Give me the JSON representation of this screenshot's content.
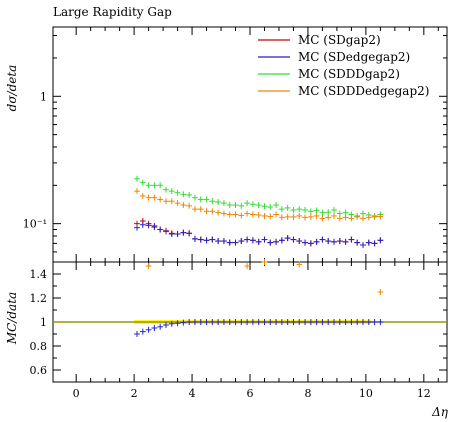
{
  "chart_data": [
    {
      "type": "line",
      "title": "Large Rapidity Gap",
      "ylabel": "dσ/deta",
      "xlabel": "",
      "yscale": "log",
      "xlim": [
        -0.8,
        12.8
      ],
      "ylim": [
        0.05,
        3.5
      ],
      "legend_position": "top-right",
      "y_ticks": [
        {
          "value": 1,
          "label": "1"
        },
        {
          "value": 0.1,
          "label": "10⁻¹"
        }
      ],
      "series": [
        {
          "name": "MC (SDgap2)",
          "color": "#cc0000",
          "x": [
            2.1,
            2.3,
            2.5,
            2.7,
            2.9,
            3.1,
            3.3,
            3.5,
            3.7,
            3.9,
            4.1,
            4.3,
            4.5,
            4.7,
            4.9,
            5.1,
            5.3,
            5.5,
            5.7,
            5.9,
            6.1,
            6.3,
            6.5,
            6.7,
            6.9,
            7.1,
            7.3,
            7.5,
            7.7,
            7.9,
            8.1,
            8.3,
            8.5,
            8.7,
            8.9,
            9.1,
            9.3,
            9.5,
            9.7,
            9.9,
            10.1,
            10.3,
            10.5
          ],
          "values": [
            0.1,
            0.105,
            0.1,
            0.096,
            0.09,
            0.088,
            0.084,
            0.083,
            0.085,
            0.084,
            0.076,
            0.075,
            0.074,
            0.075,
            0.073,
            0.073,
            0.071,
            0.071,
            0.073,
            0.075,
            0.074,
            0.072,
            0.075,
            0.071,
            0.072,
            0.074,
            0.077,
            0.075,
            0.073,
            0.071,
            0.07,
            0.072,
            0.075,
            0.073,
            0.072,
            0.073,
            0.072,
            0.075,
            0.071,
            0.068,
            0.071,
            0.07,
            0.074
          ]
        },
        {
          "name": "MC (SDedgegap2)",
          "color": "#2222cc",
          "x": [
            2.1,
            2.3,
            2.5,
            2.7,
            2.9,
            3.1,
            3.3,
            3.5,
            3.7,
            3.9,
            4.1,
            4.3,
            4.5,
            4.7,
            4.9,
            5.1,
            5.3,
            5.5,
            5.7,
            5.9,
            6.1,
            6.3,
            6.5,
            6.7,
            6.9,
            7.1,
            7.3,
            7.5,
            7.7,
            7.9,
            8.1,
            8.3,
            8.5,
            8.7,
            8.9,
            9.1,
            9.3,
            9.5,
            9.7,
            9.9,
            10.1,
            10.3,
            10.5
          ],
          "values": [
            0.093,
            0.098,
            0.097,
            0.094,
            0.09,
            0.087,
            0.083,
            0.083,
            0.085,
            0.084,
            0.076,
            0.075,
            0.074,
            0.075,
            0.073,
            0.073,
            0.071,
            0.071,
            0.073,
            0.075,
            0.074,
            0.072,
            0.075,
            0.071,
            0.072,
            0.074,
            0.077,
            0.075,
            0.073,
            0.071,
            0.07,
            0.072,
            0.075,
            0.073,
            0.072,
            0.073,
            0.072,
            0.075,
            0.071,
            0.068,
            0.071,
            0.07,
            0.074
          ]
        },
        {
          "name": "MC (SDDDgap2)",
          "color": "#33dd33",
          "x": [
            2.1,
            2.3,
            2.5,
            2.7,
            2.9,
            3.1,
            3.3,
            3.5,
            3.7,
            3.9,
            4.1,
            4.3,
            4.5,
            4.7,
            4.9,
            5.1,
            5.3,
            5.5,
            5.7,
            5.9,
            6.1,
            6.3,
            6.5,
            6.7,
            6.9,
            7.1,
            7.3,
            7.5,
            7.7,
            7.9,
            8.1,
            8.3,
            8.5,
            8.7,
            8.9,
            9.1,
            9.3,
            9.5,
            9.7,
            9.9,
            10.1,
            10.3,
            10.5
          ],
          "values": [
            0.225,
            0.21,
            0.2,
            0.2,
            0.2,
            0.185,
            0.18,
            0.175,
            0.17,
            0.168,
            0.16,
            0.155,
            0.155,
            0.15,
            0.148,
            0.145,
            0.14,
            0.14,
            0.138,
            0.145,
            0.142,
            0.14,
            0.137,
            0.135,
            0.14,
            0.13,
            0.133,
            0.128,
            0.13,
            0.128,
            0.125,
            0.127,
            0.122,
            0.123,
            0.128,
            0.12,
            0.122,
            0.118,
            0.115,
            0.12,
            0.117,
            0.115,
            0.118
          ]
        },
        {
          "name": "MC (SDDDedgegap2)",
          "color": "#ee8800",
          "x": [
            2.1,
            2.3,
            2.5,
            2.7,
            2.9,
            3.1,
            3.3,
            3.5,
            3.7,
            3.9,
            4.1,
            4.3,
            4.5,
            4.7,
            4.9,
            5.1,
            5.3,
            5.5,
            5.7,
            5.9,
            6.1,
            6.3,
            6.5,
            6.7,
            6.9,
            7.1,
            7.3,
            7.5,
            7.7,
            7.9,
            8.1,
            8.3,
            8.5,
            8.7,
            8.9,
            9.1,
            9.3,
            9.5,
            9.7,
            9.9,
            10.1,
            10.3,
            10.5
          ],
          "values": [
            0.18,
            0.165,
            0.16,
            0.16,
            0.155,
            0.15,
            0.15,
            0.145,
            0.14,
            0.138,
            0.13,
            0.13,
            0.125,
            0.125,
            0.122,
            0.12,
            0.118,
            0.118,
            0.116,
            0.12,
            0.118,
            0.117,
            0.115,
            0.114,
            0.118,
            0.112,
            0.113,
            0.113,
            0.115,
            0.112,
            0.113,
            0.115,
            0.11,
            0.112,
            0.115,
            0.11,
            0.112,
            0.11,
            0.113,
            0.11,
            0.112,
            0.113,
            0.114
          ]
        }
      ]
    },
    {
      "type": "line",
      "title": "",
      "ylabel": "MC/data",
      "xlabel": "Δη",
      "xlim": [
        -0.8,
        12.8
      ],
      "ylim": [
        0.5,
        1.5
      ],
      "x_ticks": [
        0,
        2,
        4,
        6,
        8,
        10,
        12
      ],
      "y_ticks": [
        0.6,
        0.8,
        1,
        1.2,
        1.4
      ],
      "reference_line": 1,
      "reference_color": "#999900",
      "band": {
        "color": "#ffee00",
        "x": [
          2.0,
          10.2
        ],
        "lower": 0.985,
        "upper": 1.015
      },
      "series": [
        {
          "name": "MC (SDedgegap2)",
          "color": "#2222cc",
          "x": [
            2.1,
            2.3,
            2.5,
            2.7,
            2.9,
            3.1,
            3.3,
            3.5,
            3.7,
            3.9,
            4.1,
            4.3,
            4.5,
            4.7,
            4.9,
            5.1,
            5.3,
            5.5,
            5.7,
            5.9,
            6.1,
            6.3,
            6.5,
            6.7,
            6.9,
            7.1,
            7.3,
            7.5,
            7.7,
            7.9,
            8.1,
            8.3,
            8.5,
            8.7,
            8.9,
            9.1,
            9.3,
            9.5,
            9.7,
            9.9,
            10.1,
            10.3,
            10.5
          ],
          "values": [
            0.9,
            0.92,
            0.935,
            0.95,
            0.96,
            0.975,
            0.985,
            0.99,
            0.995,
            1,
            1,
            1,
            1,
            1,
            1,
            1,
            1,
            1,
            1,
            1,
            1,
            1,
            1,
            1,
            1,
            1,
            1,
            1,
            1,
            1,
            1,
            1,
            1,
            1,
            1,
            1,
            1,
            1,
            1,
            1,
            1,
            1,
            1
          ]
        },
        {
          "name": "MC (SDDDedgegap2)",
          "color": "#ee8800",
          "x": [
            2.5,
            5.9,
            6.5,
            7.7,
            10.5
          ],
          "values": [
            1.52,
            1.51,
            1.5,
            1.48,
            1.25
          ]
        }
      ]
    }
  ]
}
